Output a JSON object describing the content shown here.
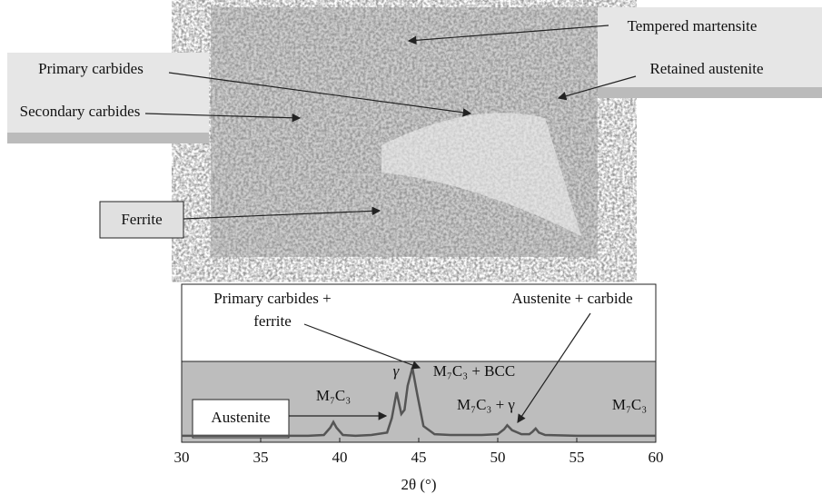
{
  "micrograph": {
    "labels": [
      "Tempered martensite",
      "Primary carbides",
      "Retained austenite",
      "Secondary carbides",
      "Ferrite"
    ]
  },
  "chart_data": {
    "type": "line",
    "x_label": "2θ (°)",
    "annotations": [
      "Primary carbides +",
      "ferrite",
      "Austenite + carbide",
      "γ",
      "M₇C₃ + BCC",
      "M₇C₃",
      "M₇C₃ + γ",
      "M₇C₃",
      "Austenite"
    ],
    "xlim": [
      30,
      60
    ],
    "xticks": [
      30,
      35,
      40,
      45,
      50,
      55,
      60
    ],
    "ylim": [
      0,
      100
    ],
    "series": [
      {
        "color": "#555555",
        "x": [
          30,
          32,
          34,
          36,
          38,
          39,
          39.4,
          39.6,
          39.8,
          40.2,
          41,
          42,
          43,
          43.3,
          43.6,
          43.9,
          44.1,
          44.3,
          44.6,
          44.9,
          45.3,
          46,
          47,
          48,
          49,
          50,
          50.4,
          50.6,
          50.9,
          51.5,
          52,
          52.2,
          52.4,
          52.6,
          53,
          55,
          57,
          60
        ],
        "values": [
          8,
          8,
          8,
          8,
          8,
          9,
          18,
          25,
          18,
          9,
          8,
          9,
          12,
          30,
          62,
          35,
          40,
          70,
          92,
          60,
          20,
          10,
          9,
          9,
          9,
          10,
          16,
          21,
          15,
          10,
          10,
          13,
          17,
          12,
          9,
          8,
          8,
          8
        ]
      }
    ]
  }
}
